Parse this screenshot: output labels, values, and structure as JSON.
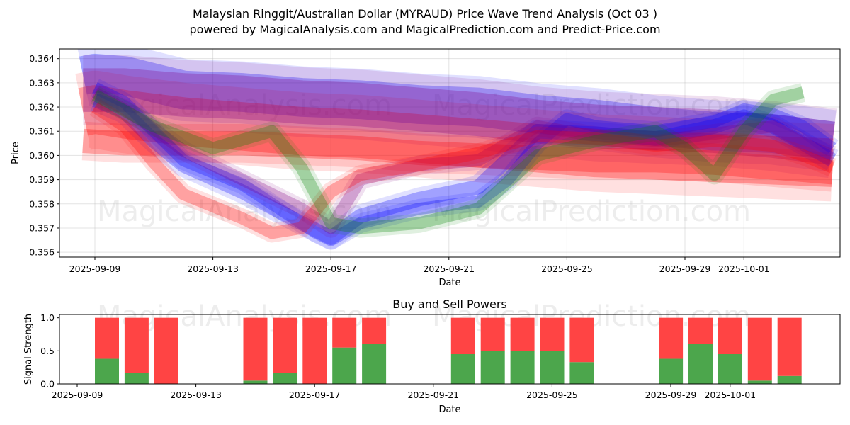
{
  "chart_data": [
    {
      "type": "area",
      "title_line1": "Malaysian Ringgit/Australian Dollar (MYRAUD) Price Wave Trend Analysis (Oct 03 )",
      "title_line2": "powered by MagicalAnalysis.com and MagicalPrediction.com and Predict-Price.com",
      "xlabel": "Date",
      "ylabel": "Price",
      "x_ticks": [
        "2025-09-09",
        "2025-09-13",
        "2025-09-17",
        "2025-09-21",
        "2025-09-25",
        "2025-09-29",
        "2025-10-01"
      ],
      "y_ticks": [
        "0.356",
        "0.357",
        "0.358",
        "0.359",
        "0.360",
        "0.361",
        "0.362",
        "0.363",
        "0.364"
      ],
      "ylim": [
        0.3558,
        0.3644
      ],
      "x_range": [
        "2025-09-08",
        "2025-10-04"
      ],
      "grid": true,
      "watermarks": [
        "MagicalAnalysis.com",
        "MagicalPrediction.com",
        "MagicalAnalysis.com",
        "MagicalPrediction.com"
      ],
      "colors": {
        "blue": "#0000ff",
        "red": "#ff0000",
        "green": "#008000",
        "purple": "#800080"
      },
      "series": [
        {
          "name": "blue-upper-trend",
          "color": "blue",
          "width": 0.0016,
          "points": [
            [
              0.6,
              0.3633
            ],
            [
              1,
              0.3634
            ],
            [
              2,
              0.3633
            ],
            [
              3,
              0.363
            ],
            [
              4,
              0.3627
            ],
            [
              6,
              0.3626
            ],
            [
              8,
              0.3624
            ],
            [
              10,
              0.3623
            ],
            [
              12,
              0.3621
            ],
            [
              14,
              0.362
            ],
            [
              16,
              0.3617
            ],
            [
              18,
              0.3615
            ],
            [
              20,
              0.3612
            ],
            [
              22,
              0.361
            ],
            [
              24,
              0.3609
            ],
            [
              26,
              0.3606
            ]
          ]
        },
        {
          "name": "red-wide-band",
          "color": "red",
          "width": 0.002,
          "points": [
            [
              0.6,
              0.3618
            ],
            [
              1,
              0.3619
            ],
            [
              2,
              0.3617
            ],
            [
              4,
              0.3614
            ],
            [
              6,
              0.3612
            ],
            [
              8,
              0.361
            ],
            [
              10,
              0.3609
            ],
            [
              12,
              0.3607
            ],
            [
              14,
              0.3605
            ],
            [
              16,
              0.3603
            ],
            [
              18,
              0.3601
            ],
            [
              20,
              0.36
            ],
            [
              22,
              0.3599
            ],
            [
              24,
              0.3598
            ],
            [
              26,
              0.3597
            ]
          ]
        },
        {
          "name": "purple-band",
          "color": "purple",
          "width": 0.0018,
          "points": [
            [
              0.6,
              0.3627
            ],
            [
              1,
              0.3627
            ],
            [
              2,
              0.3627
            ],
            [
              4,
              0.3625
            ],
            [
              6,
              0.3624
            ],
            [
              8,
              0.3622
            ],
            [
              10,
              0.3621
            ],
            [
              12,
              0.3619
            ],
            [
              14,
              0.3617
            ],
            [
              16,
              0.3614
            ],
            [
              18,
              0.3612
            ],
            [
              20,
              0.3611
            ],
            [
              22,
              0.361
            ],
            [
              24,
              0.3608
            ],
            [
              26,
              0.3605
            ]
          ]
        },
        {
          "name": "red-lower-band",
          "color": "red",
          "width": 0.001,
          "points": [
            [
              0.6,
              0.3606
            ],
            [
              2,
              0.3605
            ],
            [
              4,
              0.3605
            ],
            [
              6,
              0.3605
            ],
            [
              8,
              0.3604
            ],
            [
              10,
              0.3603
            ],
            [
              12,
              0.3601
            ],
            [
              14,
              0.36
            ],
            [
              16,
              0.3599
            ],
            [
              18,
              0.3598
            ],
            [
              20,
              0.3598
            ],
            [
              22,
              0.3597
            ],
            [
              24,
              0.3595
            ],
            [
              26,
              0.3593
            ]
          ]
        },
        {
          "name": "blue-wave-1",
          "color": "blue",
          "width": 0.0005,
          "points": [
            [
              1,
              0.3628
            ],
            [
              2,
              0.3622
            ],
            [
              3,
              0.361
            ],
            [
              4,
              0.3598
            ],
            [
              6,
              0.3588
            ],
            [
              8,
              0.3572
            ],
            [
              8.5,
              0.3568
            ],
            [
              9,
              0.3565
            ],
            [
              10,
              0.3572
            ],
            [
              12,
              0.3578
            ],
            [
              14,
              0.3581
            ],
            [
              15,
              0.359
            ],
            [
              16,
              0.3605
            ],
            [
              17,
              0.3615
            ],
            [
              18,
              0.3612
            ],
            [
              20,
              0.361
            ],
            [
              22,
              0.3614
            ],
            [
              23,
              0.3619
            ],
            [
              24,
              0.3617
            ],
            [
              25,
              0.3612
            ],
            [
              26,
              0.3603
            ]
          ]
        },
        {
          "name": "blue-wave-2",
          "color": "blue",
          "width": 0.0006,
          "points": [
            [
              1,
              0.3623
            ],
            [
              2,
              0.3618
            ],
            [
              3,
              0.3606
            ],
            [
              4,
              0.3596
            ],
            [
              6,
              0.3585
            ],
            [
              8,
              0.3572
            ],
            [
              9,
              0.3566
            ],
            [
              10,
              0.3575
            ],
            [
              12,
              0.3582
            ],
            [
              14,
              0.3587
            ],
            [
              16,
              0.361
            ],
            [
              18,
              0.3609
            ],
            [
              20,
              0.3607
            ],
            [
              22,
              0.3612
            ],
            [
              23,
              0.3616
            ],
            [
              24,
              0.3612
            ],
            [
              25,
              0.3605
            ],
            [
              26,
              0.3598
            ]
          ]
        },
        {
          "name": "purple-wave",
          "color": "purple",
          "width": 0.0005,
          "points": [
            [
              1,
              0.3626
            ],
            [
              2,
              0.3619
            ],
            [
              3,
              0.3611
            ],
            [
              4,
              0.3602
            ],
            [
              6,
              0.359
            ],
            [
              8,
              0.3578
            ],
            [
              9,
              0.357
            ],
            [
              10,
              0.359
            ],
            [
              12,
              0.3596
            ],
            [
              14,
              0.3598
            ],
            [
              16,
              0.3612
            ],
            [
              18,
              0.3608
            ],
            [
              20,
              0.3606
            ],
            [
              22,
              0.3609
            ],
            [
              24,
              0.3612
            ],
            [
              25,
              0.3605
            ],
            [
              26,
              0.36
            ]
          ]
        },
        {
          "name": "red-wave",
          "color": "red",
          "width": 0.0005,
          "points": [
            [
              1,
              0.362
            ],
            [
              2,
              0.3612
            ],
            [
              3,
              0.3597
            ],
            [
              4,
              0.3584
            ],
            [
              6,
              0.3574
            ],
            [
              7,
              0.3568
            ],
            [
              8,
              0.357
            ],
            [
              9,
              0.3585
            ],
            [
              10,
              0.3592
            ],
            [
              12,
              0.3596
            ],
            [
              14,
              0.3601
            ],
            [
              16,
              0.3608
            ],
            [
              18,
              0.3607
            ],
            [
              20,
              0.3604
            ],
            [
              22,
              0.3606
            ],
            [
              24,
              0.3604
            ],
            [
              25,
              0.36
            ],
            [
              26,
              0.3595
            ]
          ]
        },
        {
          "name": "green-wave",
          "color": "green",
          "width": 0.0005,
          "points": [
            [
              1,
              0.3625
            ],
            [
              3,
              0.3612
            ],
            [
              5,
              0.3603
            ],
            [
              7,
              0.361
            ],
            [
              8,
              0.3595
            ],
            [
              9,
              0.3572
            ],
            [
              10,
              0.357
            ],
            [
              12,
              0.3572
            ],
            [
              14,
              0.3578
            ],
            [
              16,
              0.36
            ],
            [
              18,
              0.3606
            ],
            [
              20,
              0.361
            ],
            [
              21,
              0.3603
            ],
            [
              22,
              0.3592
            ],
            [
              23,
              0.361
            ],
            [
              24,
              0.3623
            ],
            [
              25,
              0.3626
            ]
          ]
        }
      ]
    },
    {
      "type": "bar",
      "title": "Buy and Sell Powers",
      "xlabel": "Date",
      "ylabel": "Signal Strength",
      "x_ticks": [
        "2025-09-09",
        "2025-09-13",
        "2025-09-17",
        "2025-09-21",
        "2025-09-25",
        "2025-09-29",
        "2025-10-01"
      ],
      "y_ticks": [
        "0.0",
        "0.5",
        "1.0"
      ],
      "ylim": [
        0,
        1.05
      ],
      "colors": {
        "buy": "#4ca64c",
        "sell": "#ff4444"
      },
      "series": [
        {
          "name": "Buy",
          "values": [
            0.38,
            0.17,
            0.0,
            0.05,
            0.17,
            0.0,
            0.55,
            0.6,
            0.45,
            0.5,
            0.5,
            0.5,
            0.33,
            0.38,
            0.6,
            0.45,
            0.05,
            0.12
          ]
        },
        {
          "name": "Sell",
          "values": [
            0.62,
            0.83,
            1.0,
            0.95,
            0.83,
            1.0,
            0.45,
            0.4,
            0.55,
            0.5,
            0.5,
            0.5,
            0.67,
            0.62,
            0.4,
            0.55,
            0.95,
            0.88
          ]
        }
      ],
      "categories": [
        "2025-09-09",
        "2025-09-10",
        "2025-09-11",
        "2025-09-14",
        "2025-09-15",
        "2025-09-16",
        "2025-09-17",
        "2025-09-18",
        "2025-09-21",
        "2025-09-22",
        "2025-09-23",
        "2025-09-24",
        "2025-09-25",
        "2025-09-28",
        "2025-09-29",
        "2025-09-30",
        "2025-10-01",
        "2025-10-02"
      ]
    }
  ]
}
